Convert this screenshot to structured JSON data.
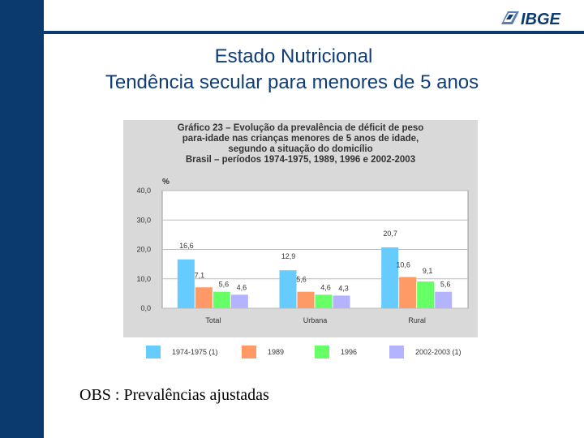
{
  "slide": {
    "title_line1": "Estado Nutricional",
    "title_line2": "Tendência secular para menores de 5 anos",
    "logo_text": "IBGE",
    "obs": "OBS : Prevalências ajustadas"
  },
  "colors": {
    "sidebar": "#0b3a6e",
    "title": "#0f3d7a",
    "chart_panel": "#d9d9d9",
    "plot_area": "#ffffff"
  },
  "chart_data": {
    "type": "bar",
    "title_lines": [
      "Gráfico 23 – Evolução da prevalência de déficit de peso",
      "para-idade nas crianças menores de 5 anos de idade,",
      "segundo a situação do domicílio",
      "Brasil – períodos 1974-1975, 1989, 1996 e 2002-2003"
    ],
    "ylabel": "%",
    "ylim": [
      0,
      40
    ],
    "yticks": [
      "0,0",
      "10,0",
      "20,0",
      "30,0",
      "40,0"
    ],
    "grid": true,
    "legend_position": "bottom",
    "categories": [
      "Total",
      "Urbana",
      "Rural"
    ],
    "series": [
      {
        "name": "1974-1975 (1)",
        "color": "#66ccff",
        "values": [
          16.6,
          12.9,
          20.7
        ],
        "labels": [
          "16,6",
          "12,9",
          "20,7"
        ]
      },
      {
        "name": "1989",
        "color": "#ff9966",
        "values": [
          7.1,
          5.6,
          10.6
        ],
        "labels": [
          "7,1",
          "5,6",
          "10,6"
        ]
      },
      {
        "name": "1996",
        "color": "#66ff66",
        "values": [
          5.6,
          4.6,
          9.1
        ],
        "labels": [
          "5,6",
          "4,6",
          "9,1"
        ]
      },
      {
        "name": "2002-2003 (1)",
        "color": "#b3b3ff",
        "values": [
          4.6,
          4.3,
          5.6
        ],
        "labels": [
          "4,6",
          "4,3",
          "5,6"
        ]
      }
    ]
  }
}
